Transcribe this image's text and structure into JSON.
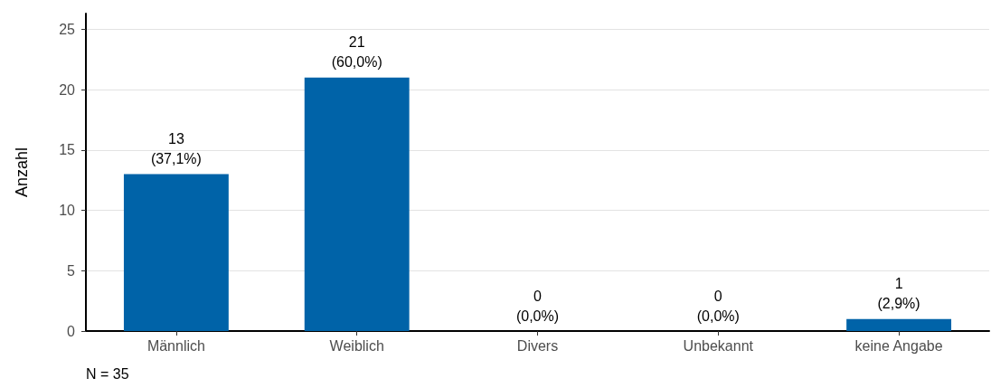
{
  "chart_data": {
    "type": "bar",
    "ylabel": "Anzahl",
    "categories": [
      "Männlich",
      "Weiblich",
      "Divers",
      "Unbekannt",
      "keine Angabe"
    ],
    "values": [
      13,
      21,
      0,
      0,
      1
    ],
    "value_labels": [
      "13\n(37,1%)",
      "21\n(60,0%)",
      "0\n(0,0%)",
      "0\n(0,0%)",
      "1\n(2,9%)"
    ],
    "color": "#0063a8",
    "ylim": [
      0,
      26.3
    ],
    "yticks": [
      0,
      5,
      10,
      15,
      20,
      25
    ],
    "grid": "y",
    "annotations": [
      "N = 35"
    ]
  }
}
